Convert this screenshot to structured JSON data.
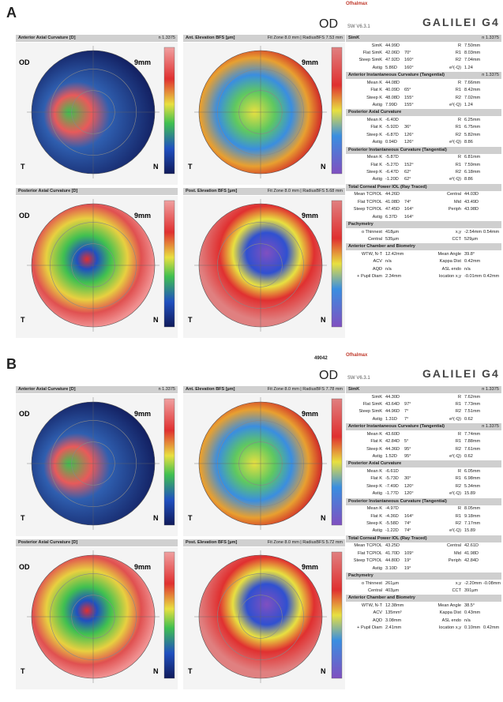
{
  "panels": [
    {
      "label": "A",
      "eye": "OD",
      "brand": "Ofhalmax",
      "logo": "GALILEI G4",
      "software": "SW V6.3.1",
      "map_marks": {
        "size": "9mm",
        "temporal": "T",
        "nasal": "N"
      },
      "maps": [
        {
          "title": "Anterior Axial Curvature [D]",
          "note": "n 1.3375"
        },
        {
          "title": "Ant. Elevation BFS [µm]",
          "note": "Fit Zone 8.0 mm | RadiusBFS 7.53 mm"
        },
        {
          "title": "Posterior Axial Curvature [D]"
        },
        {
          "title": "Post. Elevation BFS [µm]",
          "note": "Fit Zone 8.0 mm | RadiusBFS 5.68 mm"
        }
      ],
      "sections": [
        {
          "title": "SimK",
          "note": "n 1.3375",
          "rows": [
            {
              "l": "SimK",
              "v": [
                "44.99D"
              ],
              "r": "R",
              "rv": [
                "7.50mm"
              ]
            },
            {
              "l": "Flat SimK",
              "v": [
                "42.06D",
                "70°"
              ],
              "r": "R1",
              "rv": [
                "8.03mm"
              ]
            },
            {
              "l": "Steep SimK",
              "v": [
                "47.92D",
                "160°"
              ],
              "r": "R2",
              "rv": [
                "7.04mm"
              ]
            },
            {
              "l": "Astig",
              "v": [
                "5.86D",
                "160°"
              ],
              "r": "e²(-Q)",
              "rv": [
                "1.24"
              ]
            }
          ]
        },
        {
          "title": "Anterior Instantaneous Curvature (Tangential)",
          "note": "n 1.3375",
          "rows": [
            {
              "l": "Mean K",
              "v": [
                "44.08D"
              ],
              "r": "R",
              "rv": [
                "7.66mm"
              ]
            },
            {
              "l": "Flat K",
              "v": [
                "40.09D",
                "65°"
              ],
              "r": "R1",
              "rv": [
                "8.42mm"
              ]
            },
            {
              "l": "Steep K",
              "v": [
                "48.08D",
                "155°"
              ],
              "r": "R2",
              "rv": [
                "7.02mm"
              ]
            },
            {
              "l": "Astig",
              "v": [
                "7.99D",
                "155°"
              ],
              "r": "e²(-Q)",
              "rv": [
                "1.24"
              ]
            }
          ]
        },
        {
          "title": "Posterior Axial Curvature",
          "rows": [
            {
              "l": "Mean K",
              "v": [
                "-6.40D"
              ],
              "r": "R",
              "rv": [
                "6.25mm"
              ]
            },
            {
              "l": "Flat K",
              "v": [
                "-5.92D",
                "36°"
              ],
              "r": "R1",
              "rv": [
                "6.75mm"
              ]
            },
            {
              "l": "Steep K",
              "v": [
                "-6.87D",
                "126°"
              ],
              "r": "R2",
              "rv": [
                "5.82mm"
              ]
            },
            {
              "l": "Astig",
              "v": [
                "0.94D",
                "126°"
              ],
              "r": "e²(-Q)",
              "rv": [
                "8.86"
              ]
            }
          ]
        },
        {
          "title": "Posterior Instantaneous Curvature (Tangential)",
          "rows": [
            {
              "l": "Mean K",
              "v": [
                "-5.87D"
              ],
              "r": "R",
              "rv": [
                "6.81mm"
              ]
            },
            {
              "l": "Flat K",
              "v": [
                "-5.27D",
                "152°"
              ],
              "r": "R1",
              "rv": [
                "7.59mm"
              ]
            },
            {
              "l": "Steep K",
              "v": [
                "-6.47D",
                "62°"
              ],
              "r": "R2",
              "rv": [
                "6.18mm"
              ]
            },
            {
              "l": "Astig",
              "v": [
                "-1.20D",
                "62°"
              ],
              "r": "e²(-Q)",
              "rv": [
                "8.86"
              ]
            }
          ]
        },
        {
          "title": "Total Corneal Power IOL (Ray Traced)",
          "rows": [
            {
              "l": "Mean TCPIOL",
              "v": [
                "44.26D"
              ],
              "r": "Central",
              "rv": [
                "44.03D"
              ]
            },
            {
              "l": "Flat TCPIOL",
              "v": [
                "41.08D",
                "74°"
              ],
              "r": "Mid",
              "rv": [
                "43.49D"
              ]
            },
            {
              "l": "Steep TCPIOL",
              "v": [
                "47.45D",
                "164°"
              ],
              "r": "Periph",
              "rv": [
                "43.98D"
              ]
            },
            {
              "l": "Astig",
              "v": [
                "6.37D",
                "164°"
              ]
            }
          ]
        },
        {
          "title": "Pachymetry",
          "rows": [
            {
              "l": "o Thinnest",
              "v": [
                "418µm"
              ],
              "r": "x,y",
              "rv": [
                "-2.54mm",
                "0.54mm"
              ]
            },
            {
              "l": "Central",
              "v": [
                "535µm"
              ],
              "r": "CCT",
              "rv": [
                "529µm"
              ]
            }
          ]
        },
        {
          "title": "Anterior Chamber and Biometry",
          "rows": [
            {
              "l": "WTW, N-T",
              "v": [
                "12.42mm"
              ],
              "r": "Mean Angle",
              "rv": [
                "39.8°"
              ]
            },
            {
              "l": "ACV",
              "v": [
                "n/a"
              ],
              "r": "Kappa Dist",
              "rv": [
                "0.42mm"
              ]
            },
            {
              "l": "AQD",
              "v": [
                "n/a"
              ],
              "r": "ASL endo",
              "rv": [
                "n/a"
              ]
            },
            {
              "l": "+ Pupil Diam",
              "v": [
                "2.34mm"
              ],
              "r": "location x,y",
              "rv": [
                "-0.01mm",
                "0.42mm"
              ]
            }
          ]
        }
      ]
    },
    {
      "label": "B",
      "id": "49042",
      "eye": "OD",
      "brand": "Ofhalmax",
      "logo": "GALILEI G4",
      "software": "SW V6.3.1",
      "map_marks": {
        "size": "9mm",
        "temporal": "T",
        "nasal": "N"
      },
      "maps": [
        {
          "title": "Anterior Axial Curvature [D]",
          "note": "n 1.3375"
        },
        {
          "title": "Ant. Elevation BFS [µm]",
          "note": "Fit Zone 8.0 mm | RadiusBFS 7.78 mm"
        },
        {
          "title": "Posterior Axial Curvature [D]"
        },
        {
          "title": "Post. Elevation BFS [µm]",
          "note": "Fit Zone 8.0 mm | RadiusBFS 5.72 mm"
        }
      ],
      "sections": [
        {
          "title": "SimK",
          "note": "n 1.3375",
          "rows": [
            {
              "l": "SimK",
              "v": [
                "44.30D"
              ],
              "r": "R",
              "rv": [
                "7.62mm"
              ]
            },
            {
              "l": "Flat SimK",
              "v": [
                "43.64D",
                "97°"
              ],
              "r": "R1",
              "rv": [
                "7.73mm"
              ]
            },
            {
              "l": "Steep SimK",
              "v": [
                "44.96D",
                "7°"
              ],
              "r": "R2",
              "rv": [
                "7.51mm"
              ]
            },
            {
              "l": "Astig",
              "v": [
                "1.31D",
                "7°"
              ],
              "r": "e²(-Q)",
              "rv": [
                "0.62"
              ]
            }
          ]
        },
        {
          "title": "Anterior Instantaneous Curvature (Tangential)",
          "note": "n 1.3375",
          "rows": [
            {
              "l": "Mean K",
              "v": [
                "43.60D"
              ],
              "r": "R",
              "rv": [
                "7.74mm"
              ]
            },
            {
              "l": "Flat K",
              "v": [
                "42.84D",
                "5°"
              ],
              "r": "R1",
              "rv": [
                "7.88mm"
              ]
            },
            {
              "l": "Steep K",
              "v": [
                "44.36D",
                "95°"
              ],
              "r": "R2",
              "rv": [
                "7.61mm"
              ]
            },
            {
              "l": "Astig",
              "v": [
                "1.52D",
                "95°"
              ],
              "r": "e²(-Q)",
              "rv": [
                "0.62"
              ]
            }
          ]
        },
        {
          "title": "Posterior Axial Curvature",
          "rows": [
            {
              "l": "Mean K",
              "v": [
                "-6.61D"
              ],
              "r": "R",
              "rv": [
                "6.05mm"
              ]
            },
            {
              "l": "Flat K",
              "v": [
                "-5.73D",
                "30°"
              ],
              "r": "R1",
              "rv": [
                "6.98mm"
              ]
            },
            {
              "l": "Steep K",
              "v": [
                "-7.49D",
                "120°"
              ],
              "r": "R2",
              "rv": [
                "5.34mm"
              ]
            },
            {
              "l": "Astig",
              "v": [
                "-1.77D",
                "120°"
              ],
              "r": "e²(-Q)",
              "rv": [
                "15.89"
              ]
            }
          ]
        },
        {
          "title": "Posterior Instantaneous Curvature (Tangential)",
          "rows": [
            {
              "l": "Mean K",
              "v": [
                "-4.97D"
              ],
              "r": "R",
              "rv": [
                "8.05mm"
              ]
            },
            {
              "l": "Flat K",
              "v": [
                "-4.36D",
                "164°"
              ],
              "r": "R1",
              "rv": [
                "9.18mm"
              ]
            },
            {
              "l": "Steep K",
              "v": [
                "-5.58D",
                "74°"
              ],
              "r": "R2",
              "rv": [
                "7.17mm"
              ]
            },
            {
              "l": "Astig",
              "v": [
                "-1.22D",
                "74°"
              ],
              "r": "e²(-Q)",
              "rv": [
                "15.89"
              ]
            }
          ]
        },
        {
          "title": "Total Corneal Power IOL (Ray Traced)",
          "rows": [
            {
              "l": "Mean TCPIOL",
              "v": [
                "43.25D"
              ],
              "r": "Central",
              "rv": [
                "42.61D"
              ]
            },
            {
              "l": "Flat TCPIOL",
              "v": [
                "41.70D",
                "109°"
              ],
              "r": "Mid",
              "rv": [
                "41.98D"
              ]
            },
            {
              "l": "Steep TCPIOL",
              "v": [
                "44.80D",
                "19°"
              ],
              "r": "Periph",
              "rv": [
                "42.84D"
              ]
            },
            {
              "l": "Astig",
              "v": [
                "3.10D",
                "19°"
              ]
            }
          ]
        },
        {
          "title": "Pachymetry",
          "rows": [
            {
              "l": "o Thinnest",
              "v": [
                "261µm"
              ],
              "r": "x,y",
              "rv": [
                "-2.20mm",
                "-0.08mm"
              ]
            },
            {
              "l": "Central",
              "v": [
                "403µm"
              ],
              "r": "CCT",
              "rv": [
                "391µm"
              ]
            }
          ]
        },
        {
          "title": "Anterior Chamber and Biometry",
          "rows": [
            {
              "l": "WTW, N-T",
              "v": [
                "12.38mm"
              ],
              "r": "Mean Angle",
              "rv": [
                "38.5°"
              ]
            },
            {
              "l": "ACV",
              "v": [
                "135mm³"
              ],
              "r": "Kappa Dist",
              "rv": [
                "0.43mm"
              ]
            },
            {
              "l": "AQD",
              "v": [
                "3.08mm"
              ],
              "r": "ASL endo",
              "rv": [
                "n/a"
              ]
            },
            {
              "l": "+ Pupil Diam",
              "v": [
                "2.41mm"
              ],
              "r": "location x,y",
              "rv": [
                "0.10mm",
                "0.42mm"
              ]
            }
          ]
        }
      ]
    }
  ]
}
